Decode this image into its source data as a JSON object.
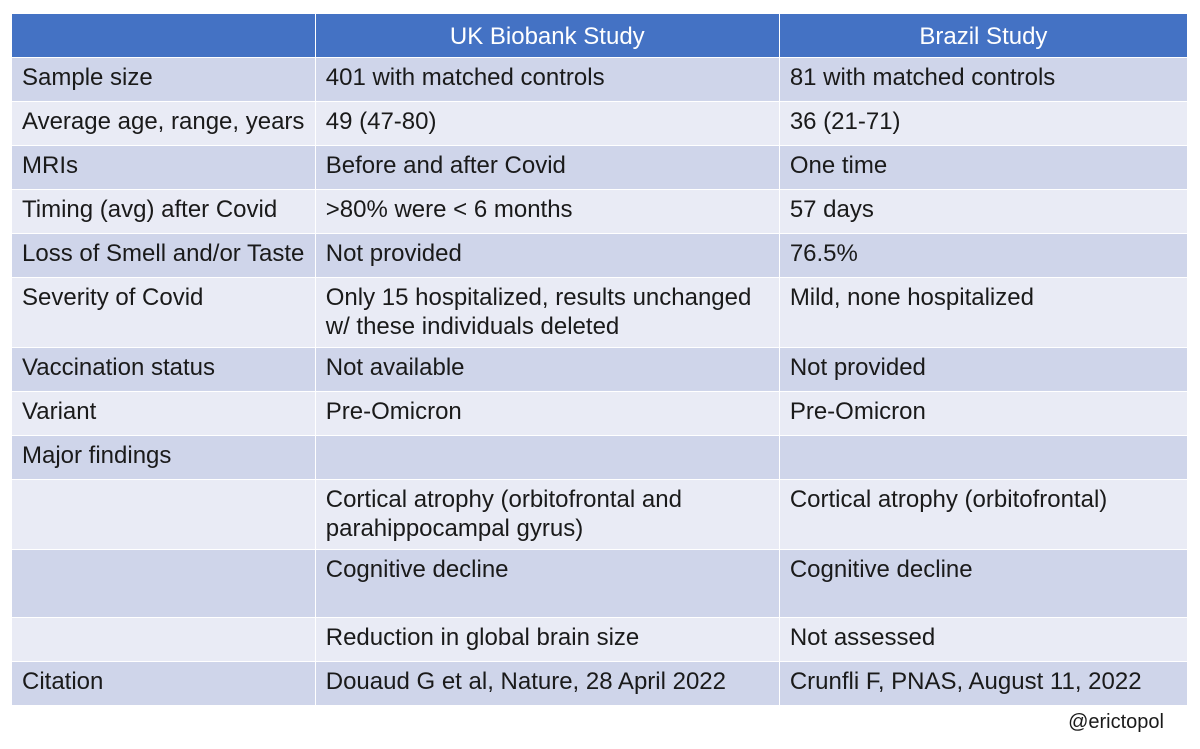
{
  "table": {
    "headers": [
      "",
      "UK Biobank Study",
      "Brazil Study"
    ],
    "rows": [
      {
        "label": "Sample size",
        "uk": [
          "401 with matched controls"
        ],
        "brazil": [
          "81 with matched controls"
        ]
      },
      {
        "label": "Average age, range, years",
        "uk": [
          "49 (47-80)"
        ],
        "brazil": [
          "36 (21-71)"
        ]
      },
      {
        "label": "MRIs",
        "uk": [
          "Before and after Covid"
        ],
        "brazil": [
          "One time"
        ]
      },
      {
        "label": "Timing (avg) after Covid",
        "uk": [
          ">80% were < 6 months"
        ],
        "brazil": [
          "57 days"
        ]
      },
      {
        "label": "Loss of Smell and/or Taste",
        "uk": [
          "Not provided"
        ],
        "brazil": [
          "76.5%"
        ]
      },
      {
        "label": "Severity of Covid",
        "uk": [
          "Only 15 hospitalized, results unchanged",
          "w/ these individuals deleted"
        ],
        "brazil": [
          "Mild, none hospitalized"
        ]
      },
      {
        "label": "Vaccination status",
        "uk": [
          "Not available"
        ],
        "brazil": [
          "Not provided"
        ]
      },
      {
        "label": "Variant",
        "uk": [
          "Pre-Omicron"
        ],
        "brazil": [
          "Pre-Omicron"
        ]
      },
      {
        "label": "Major findings",
        "uk": [
          ""
        ],
        "brazil": [
          ""
        ]
      },
      {
        "label": "",
        "uk": [
          "Cortical atrophy (orbitofrontal and",
          "parahippocampal gyrus)"
        ],
        "brazil": [
          "Cortical atrophy (orbitofrontal)"
        ]
      },
      {
        "label": "",
        "uk": [
          "Cognitive decline"
        ],
        "brazil": [
          "Cognitive decline"
        ]
      },
      {
        "label": "",
        "uk": [
          "Reduction in global brain size"
        ],
        "brazil": [
          "Not assessed"
        ]
      },
      {
        "label": "Citation",
        "uk": [
          "Douaud G et al, Nature, 28 April 2022"
        ],
        "brazil": [
          "Crunfli F, PNAS, August 11, 2022"
        ]
      }
    ]
  },
  "watermark": "@erictopol",
  "colors": {
    "header_bg": "#4472c4",
    "row_dark": "#cfd5ea",
    "row_light": "#e9ebf5"
  }
}
